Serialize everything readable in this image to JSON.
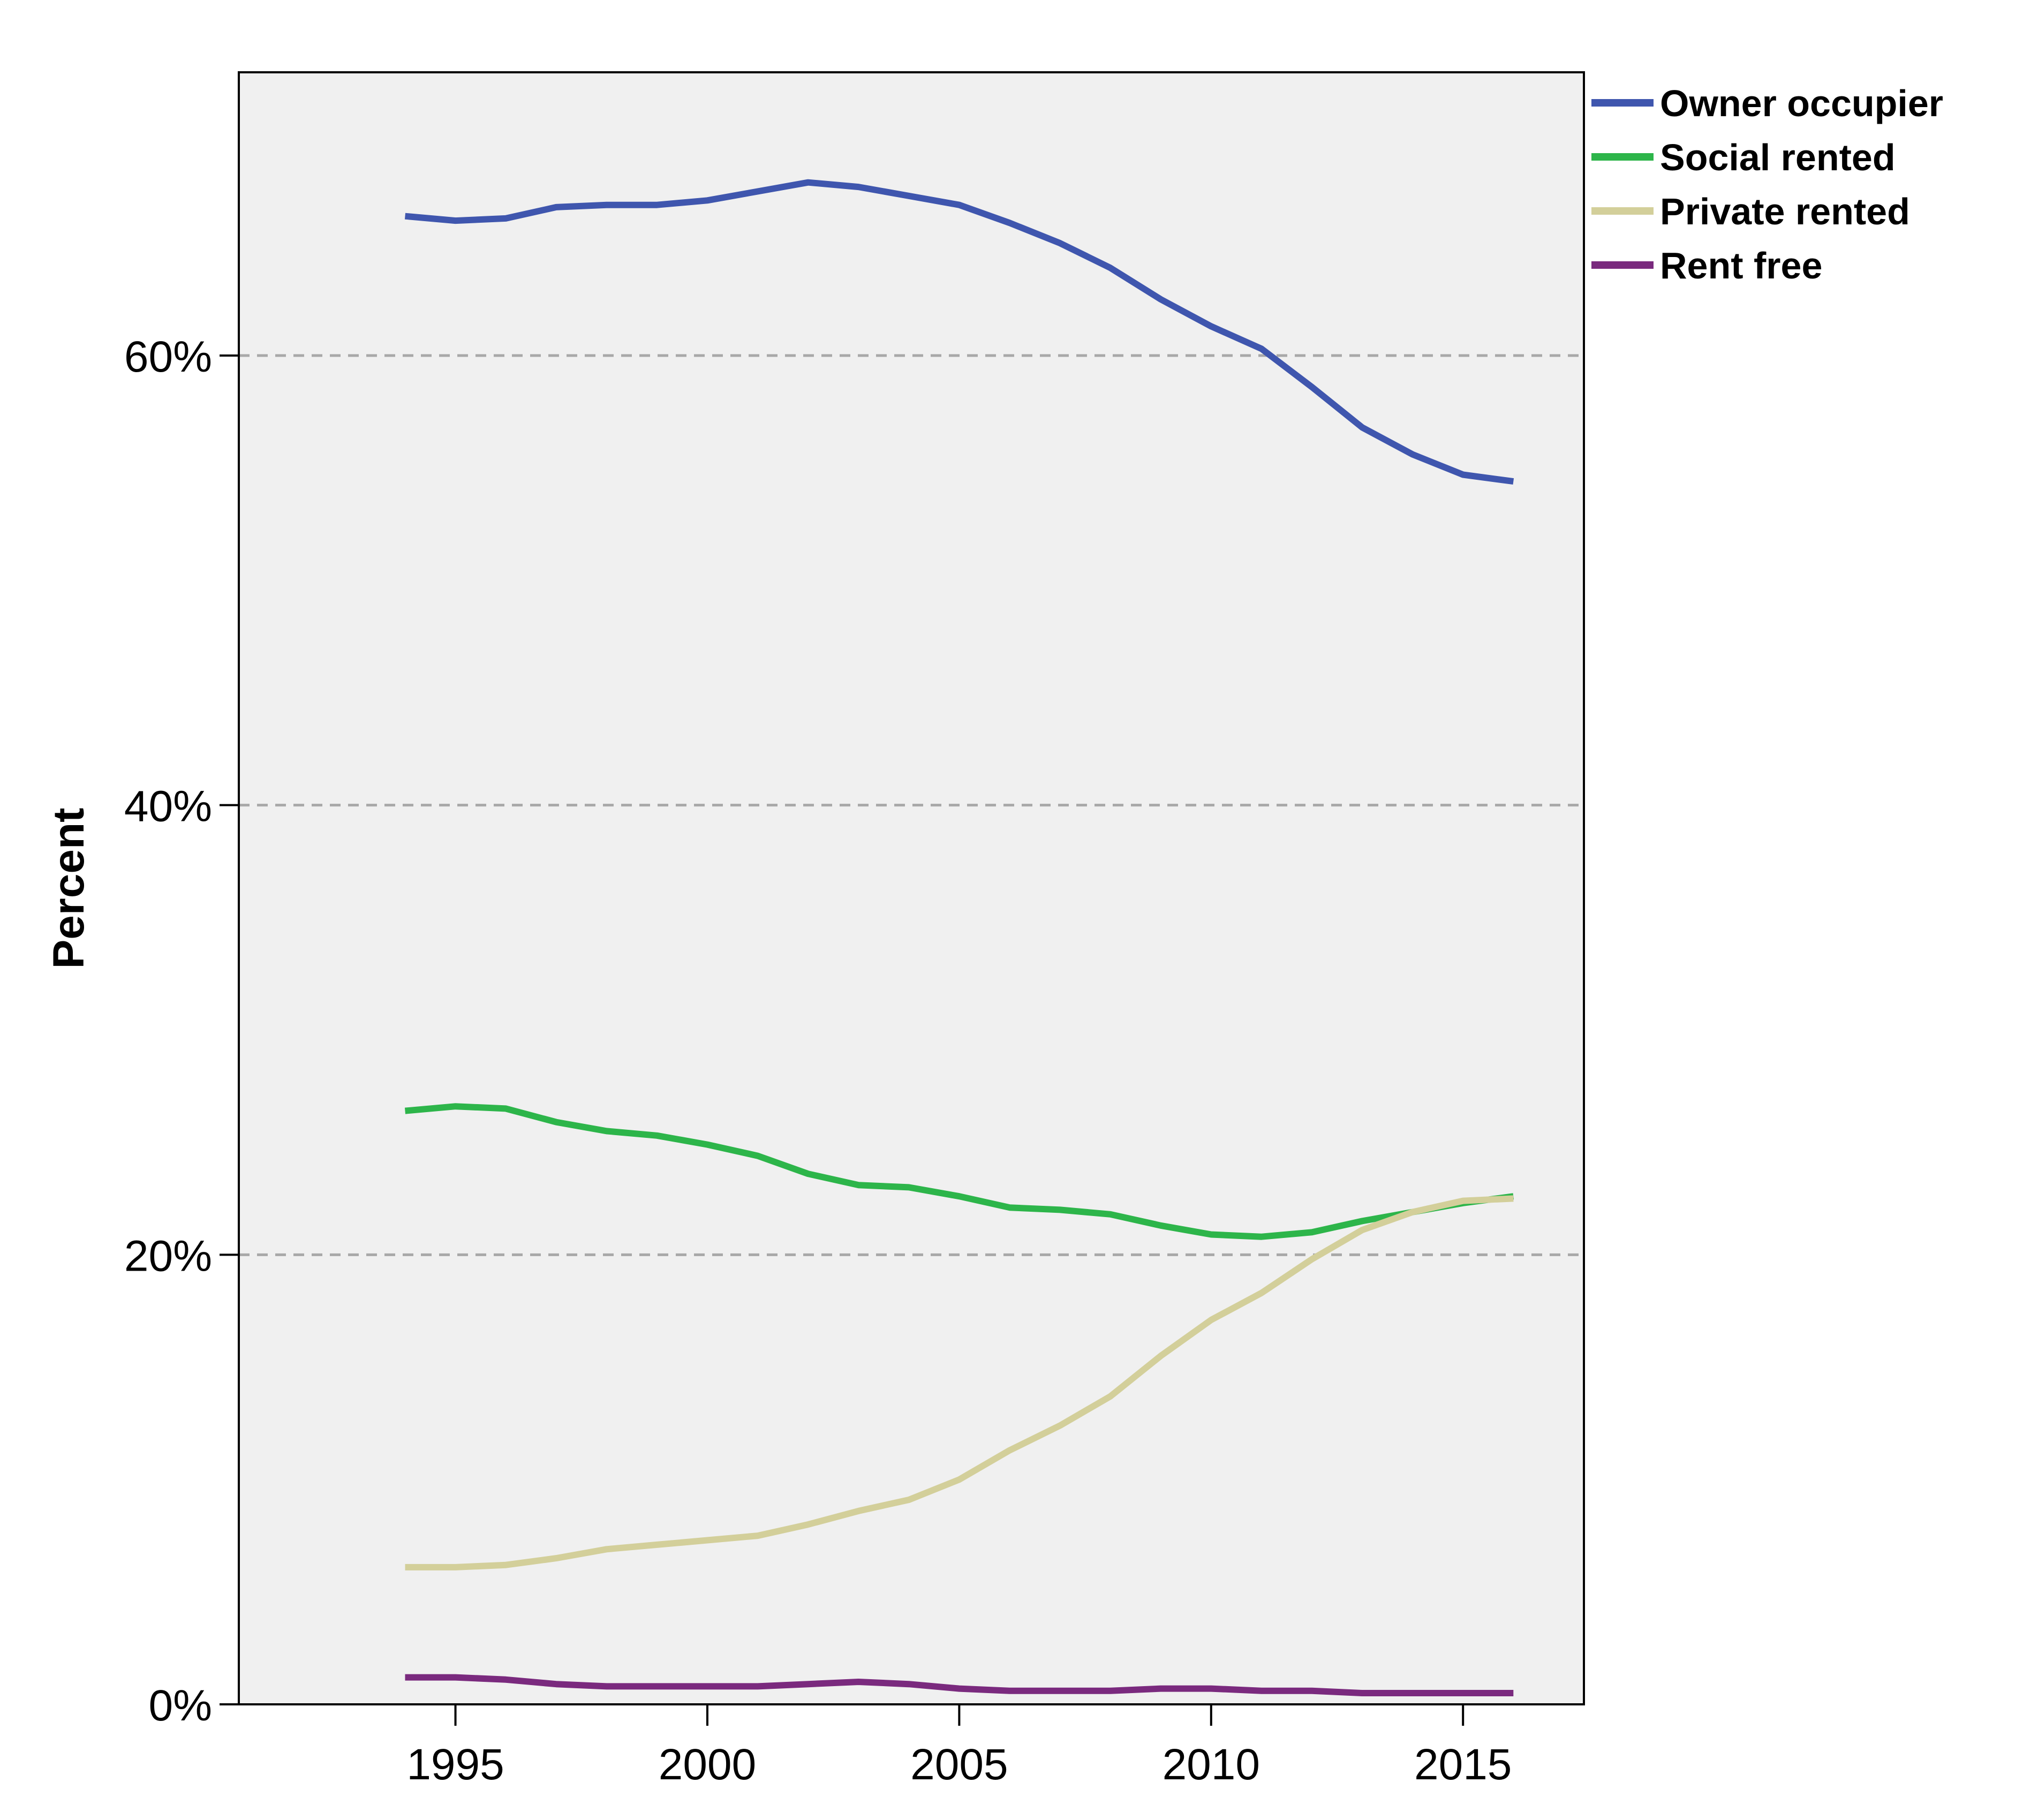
{
  "chart_data": {
    "type": "line",
    "ylabel": "Percent",
    "xlabel": "",
    "x": [
      1994,
      1995,
      1996,
      1997,
      1998,
      1999,
      2000,
      2001,
      2002,
      2003,
      2004,
      2005,
      2006,
      2007,
      2008,
      2009,
      2010,
      2011,
      2012,
      2013,
      2014,
      2015,
      2016
    ],
    "xlim": [
      1990.7,
      2017.4
    ],
    "ylim": [
      0,
      72.6
    ],
    "x_ticks": [
      1995,
      2000,
      2005,
      2010,
      2015
    ],
    "x_tick_labels": [
      "1995",
      "2000",
      "2005",
      "2010",
      "2015"
    ],
    "y_ticks": [
      0,
      20,
      40,
      60
    ],
    "y_tick_labels": [
      "0%",
      "20%",
      "40%",
      "60%"
    ],
    "grid": "horizontal dashed at 20%, 40%, 60%",
    "legend_position": "top-right outside",
    "background": "#f0f0f0",
    "series": [
      {
        "name": "Owner occupier",
        "color": "#3f56ae",
        "values": [
          66.2,
          66.0,
          66.1,
          66.6,
          66.7,
          66.7,
          66.9,
          67.3,
          67.7,
          67.5,
          67.1,
          66.7,
          65.9,
          65.0,
          63.9,
          62.5,
          61.3,
          60.3,
          58.6,
          56.8,
          55.6,
          54.7,
          54.4
        ]
      },
      {
        "name": "Social rented",
        "color": "#2db54a",
        "values": [
          26.4,
          26.6,
          26.5,
          25.9,
          25.5,
          25.3,
          24.9,
          24.4,
          23.6,
          23.1,
          23.0,
          22.6,
          22.1,
          22.0,
          21.8,
          21.3,
          20.9,
          20.8,
          21.0,
          21.5,
          21.9,
          22.3,
          22.6
        ]
      },
      {
        "name": "Private rented",
        "color": "#d3cf9a",
        "values": [
          6.1,
          6.1,
          6.2,
          6.5,
          6.9,
          7.1,
          7.3,
          7.5,
          8.0,
          8.6,
          9.1,
          10.0,
          11.3,
          12.4,
          13.7,
          15.5,
          17.1,
          18.3,
          19.8,
          21.1,
          21.9,
          22.4,
          22.5
        ]
      },
      {
        "name": "Rent free",
        "color": "#7a2a7e",
        "values": [
          1.2,
          1.2,
          1.1,
          0.9,
          0.8,
          0.8,
          0.8,
          0.8,
          0.9,
          1.0,
          0.9,
          0.7,
          0.6,
          0.6,
          0.6,
          0.7,
          0.7,
          0.6,
          0.6,
          0.5,
          0.5,
          0.5,
          0.5
        ]
      }
    ]
  }
}
